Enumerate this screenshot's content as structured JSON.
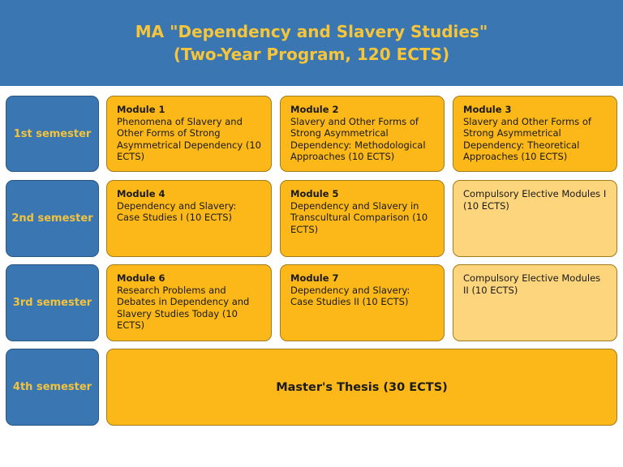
{
  "title": {
    "line1": "MA \"Dependency and Slavery Studies\"",
    "line2": "(Two-Year Program, 120 ECTS)"
  },
  "colors": {
    "blue": "#3a76b2",
    "module": "#fbb818",
    "elective": "#fcd57c",
    "semester_text": "#f2c33c"
  },
  "semesters": [
    "1st semester",
    "2nd semester",
    "3rd semester",
    "4th semester"
  ],
  "modules": [
    {
      "name": "Module 1",
      "desc": "Phenomena of Slavery and Other Forms of Strong Asymmetrical Dependency (10 ECTS)"
    },
    {
      "name": "Module 2",
      "desc": "Slavery and Other Forms of Strong Asymmetrical Dependency: Methodological Approaches (10 ECTS)"
    },
    {
      "name": "Module 3",
      "desc": "Slavery and Other Forms of Strong Asymmetrical Dependency: Theoretical Approaches (10 ECTS)"
    },
    {
      "name": "Module 4",
      "desc": "Dependency and Slavery: Case Studies I (10 ECTS)"
    },
    {
      "name": "Module 5",
      "desc": "Dependency and Slavery in Transcultural Comparison (10 ECTS)"
    },
    {
      "name": "Module 6",
      "desc": "Research Problems and Debates in Dependency and Slavery Studies Today (10 ECTS)"
    },
    {
      "name": "Module 7",
      "desc": "Dependency and Slavery: Case Studies II (10 ECTS)"
    }
  ],
  "electives": [
    "Compulsory Elective Modules I (10 ECTS)",
    "Compulsory Elective Modules II (10 ECTS)"
  ],
  "thesis": "Master's Thesis (30 ECTS)"
}
